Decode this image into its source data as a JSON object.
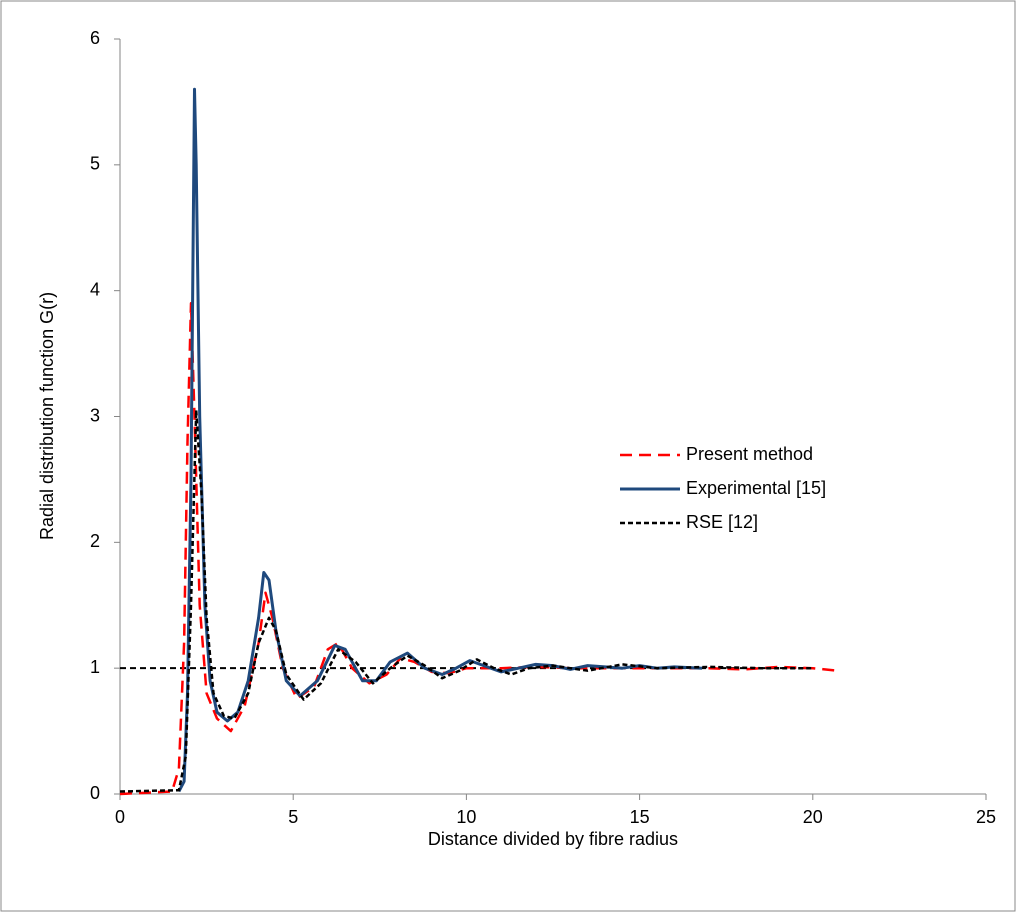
{
  "chart_data": {
    "type": "line",
    "x_label": "Distance divided by fibre radius",
    "y_label": "Radial distribution function G(r)",
    "xlim": [
      0,
      25
    ],
    "xticks": [
      0,
      5,
      10,
      15,
      20,
      25
    ],
    "ylim": [
      0,
      6
    ],
    "yticks": [
      0,
      1,
      2,
      3,
      4,
      5,
      6
    ],
    "grid": false,
    "legend": "right",
    "series": [
      {
        "name": "Present method",
        "color": "#ff0000",
        "dash": "dashed",
        "x": [
          0,
          1.5,
          1.7,
          1.85,
          1.95,
          2.05,
          2.15,
          2.3,
          2.5,
          2.8,
          3.2,
          3.6,
          4.0,
          4.2,
          4.4,
          4.7,
          5.1,
          5.6,
          6.0,
          6.3,
          6.7,
          7.2,
          7.7,
          8.1,
          8.5,
          9,
          9.5,
          10,
          11,
          12,
          13,
          14,
          15,
          16,
          17,
          18,
          19,
          20,
          20.7
        ],
        "values": [
          0,
          0.02,
          0.2,
          1.2,
          2.8,
          3.9,
          3.0,
          1.5,
          0.8,
          0.6,
          0.5,
          0.7,
          1.2,
          1.6,
          1.4,
          1.0,
          0.76,
          0.85,
          1.15,
          1.2,
          1.0,
          0.88,
          0.95,
          1.08,
          1.05,
          0.97,
          0.96,
          1.0,
          1.0,
          1.01,
          1.0,
          1.0,
          1.0,
          1.0,
          1.0,
          0.99,
          1.01,
          1.0,
          0.98
        ]
      },
      {
        "name": "Experimental [15]",
        "color": "#1f497d",
        "dash": "solid",
        "x": [
          1.7,
          1.85,
          1.95,
          2.05,
          2.15,
          2.2,
          2.3,
          2.45,
          2.6,
          2.8,
          3.1,
          3.4,
          3.7,
          4.0,
          4.15,
          4.3,
          4.5,
          4.8,
          5.2,
          5.7,
          6.2,
          6.5,
          7.0,
          7.4,
          7.8,
          8.3,
          8.8,
          9.3,
          9.7,
          10.1,
          10.5,
          11,
          11.5,
          12,
          12.5,
          13,
          13.5,
          14,
          14.5,
          15,
          15.5,
          16,
          16.8
        ],
        "values": [
          0.02,
          0.1,
          0.8,
          2.5,
          5.6,
          5.0,
          3.0,
          1.5,
          0.9,
          0.65,
          0.58,
          0.65,
          0.9,
          1.4,
          1.76,
          1.7,
          1.3,
          0.9,
          0.78,
          0.9,
          1.18,
          1.15,
          0.9,
          0.9,
          1.05,
          1.12,
          1.0,
          0.95,
          1.0,
          1.06,
          1.02,
          0.97,
          1.0,
          1.03,
          1.02,
          0.99,
          1.02,
          1.01,
          1.0,
          1.02,
          1.0,
          1.01,
          1.0
        ]
      },
      {
        "name": "RSE [12]",
        "color": "#000000",
        "dash": "dotted",
        "x": [
          0,
          1.7,
          1.9,
          2.05,
          2.2,
          2.35,
          2.5,
          2.7,
          3.0,
          3.3,
          3.7,
          4.0,
          4.3,
          4.5,
          4.8,
          5.3,
          5.8,
          6.3,
          6.8,
          7.3,
          7.8,
          8.3,
          8.8,
          9.3,
          9.8,
          10.3,
          10.8,
          11.3,
          11.8,
          12.5,
          13.5,
          14.5,
          15.5,
          17,
          18.5,
          20
        ],
        "values": [
          0.02,
          0.03,
          0.3,
          1.5,
          3.05,
          2.4,
          1.4,
          0.8,
          0.62,
          0.6,
          0.8,
          1.2,
          1.4,
          1.3,
          0.95,
          0.75,
          0.88,
          1.15,
          1.05,
          0.88,
          1.0,
          1.1,
          1.02,
          0.92,
          0.98,
          1.07,
          1.0,
          0.95,
          1.0,
          1.02,
          0.98,
          1.03,
          1.0,
          1.01,
          1.0,
          1.0
        ]
      }
    ],
    "hlines": [
      {
        "value": 1,
        "from": 0,
        "to": 20,
        "color": "#000000"
      }
    ]
  }
}
